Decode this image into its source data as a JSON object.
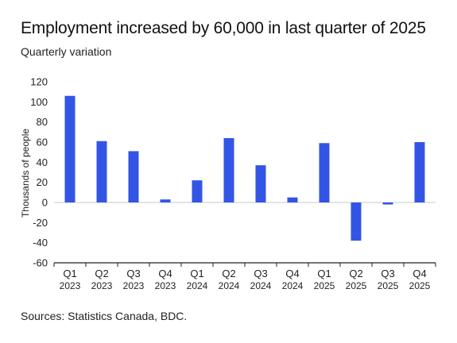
{
  "chart_data": {
    "type": "bar",
    "title": "Employment increased by 60,000 in last quarter of 2025",
    "subtitle": "Quarterly variation",
    "ylabel": "Thousands of people",
    "xlabel": "",
    "ylim": [
      -60,
      120
    ],
    "yticks": [
      120,
      100,
      80,
      60,
      40,
      20,
      0,
      -20,
      -40,
      -60
    ],
    "categories": [
      {
        "q": "Q1",
        "year": "2023"
      },
      {
        "q": "Q2",
        "year": "2023"
      },
      {
        "q": "Q3",
        "year": "2023"
      },
      {
        "q": "Q4",
        "year": "2023"
      },
      {
        "q": "Q1",
        "year": "2024"
      },
      {
        "q": "Q2",
        "year": "2024"
      },
      {
        "q": "Q3",
        "year": "2024"
      },
      {
        "q": "Q4",
        "year": "2024"
      },
      {
        "q": "Q1",
        "year": "2025"
      },
      {
        "q": "Q2",
        "year": "2025"
      },
      {
        "q": "Q3",
        "year": "2025"
      },
      {
        "q": "Q4",
        "year": "2025"
      }
    ],
    "values": [
      106,
      61,
      51,
      3,
      22,
      64,
      37,
      5,
      59,
      -38,
      -2,
      60
    ],
    "bar_color": "#3355e6",
    "grid": false,
    "source": "Sources: Statistics Canada, BDC."
  }
}
